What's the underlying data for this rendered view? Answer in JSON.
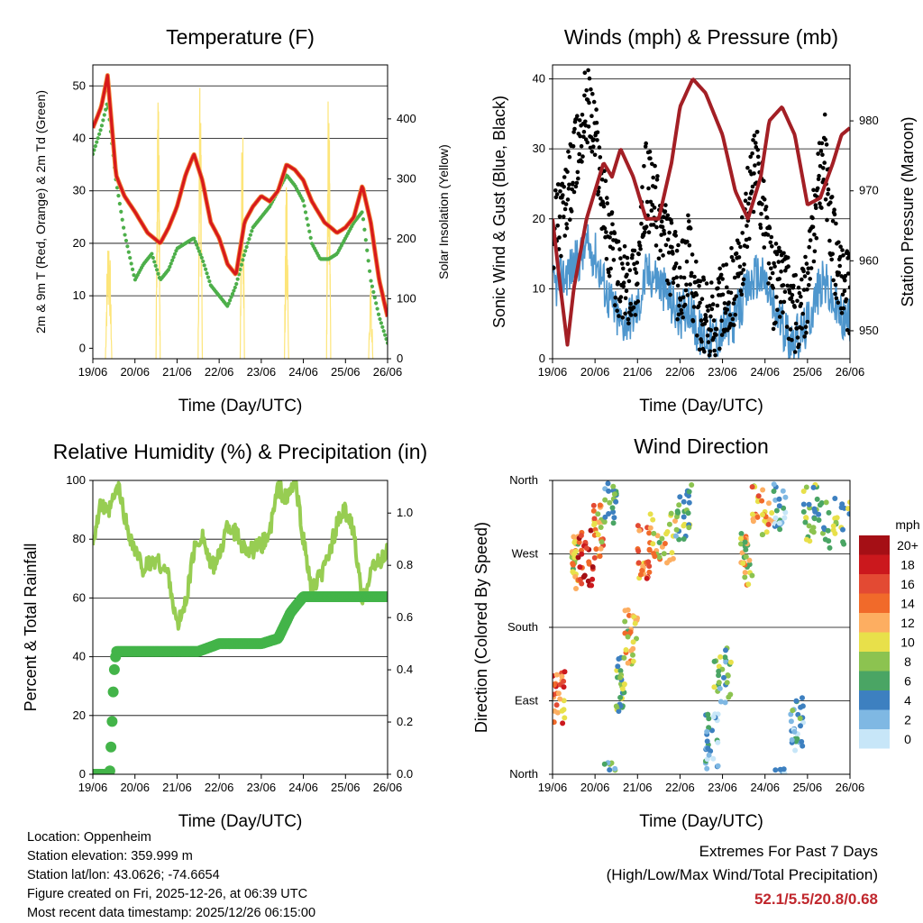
{
  "chart_data": [
    {
      "type": "line",
      "title": "Temperature (F)",
      "xlabel": "Time (Day/UTC)",
      "ylabel": "2m & 9m T (Red, Orange) & 2m Td (Green)",
      "y2label": "Solar Insolation (Yellow)",
      "x_ticks": [
        "19/06",
        "20/06",
        "21/06",
        "22/06",
        "23/06",
        "24/06",
        "25/06",
        "26/06"
      ],
      "xlim": [
        0,
        7
      ],
      "ylim": [
        -2,
        54
      ],
      "y_ticks": [
        0,
        10,
        20,
        30,
        40,
        50
      ],
      "y2lim": [
        0,
        490
      ],
      "y2_ticks": [
        0,
        100,
        200,
        300,
        400
      ],
      "series": [
        {
          "name": "2m T",
          "color": "#d7191c",
          "x": [
            0.0,
            0.2,
            0.35,
            0.55,
            0.75,
            1.0,
            1.3,
            1.6,
            1.8,
            2.0,
            2.2,
            2.4,
            2.6,
            2.8,
            3.0,
            3.2,
            3.4,
            3.6,
            3.8,
            4.0,
            4.2,
            4.4,
            4.6,
            4.8,
            5.0,
            5.2,
            5.5,
            5.8,
            6.0,
            6.2,
            6.4,
            6.6,
            6.8,
            7.0
          ],
          "values": [
            42,
            46,
            52,
            33,
            29,
            26,
            22,
            20,
            23,
            27,
            33,
            37,
            32,
            24,
            21,
            16,
            14,
            24,
            27,
            29,
            28,
            30,
            35,
            34,
            32,
            28,
            24,
            22,
            23,
            25,
            31,
            24,
            13,
            6
          ]
        },
        {
          "name": "2m Td",
          "color": "#4daf4a",
          "x": [
            0.0,
            0.2,
            0.35,
            0.55,
            0.75,
            1.0,
            1.2,
            1.4,
            1.6,
            1.8,
            2.0,
            2.2,
            2.4,
            2.6,
            2.8,
            3.0,
            3.2,
            3.4,
            3.6,
            3.8,
            4.0,
            4.2,
            4.4,
            4.6,
            4.8,
            5.0,
            5.2,
            5.4,
            5.6,
            5.8,
            6.0,
            6.2,
            6.4,
            6.6,
            6.8,
            7.0
          ],
          "values": [
            37,
            42,
            47,
            32,
            22,
            13,
            16,
            18,
            13,
            15,
            19,
            20,
            21,
            17,
            12,
            10,
            8,
            12,
            18,
            23,
            25,
            27,
            30,
            33,
            31,
            28,
            20,
            17,
            17,
            18,
            21,
            24,
            26,
            13,
            6,
            1
          ]
        },
        {
          "name": "Solar Insolation",
          "color": "#fde57a",
          "axis": "y2",
          "x": [
            0.3,
            0.45,
            1.5,
            1.6,
            2.5,
            2.6,
            3.5,
            3.6,
            4.55,
            4.65,
            5.55,
            5.65,
            6.55,
            6.65
          ],
          "values": [
            80,
            230,
            190,
            460,
            160,
            490,
            130,
            410,
            120,
            300,
            100,
            490,
            50,
            120
          ]
        }
      ]
    },
    {
      "type": "scatter",
      "title": "Winds (mph) & Pressure (mb)",
      "xlabel": "Time (Day/UTC)",
      "ylabel": "Sonic Wind & Gust (Blue, Black)",
      "y2label": "Station Pressure (Maroon)",
      "x_ticks": [
        "19/06",
        "20/06",
        "21/06",
        "22/06",
        "23/06",
        "24/06",
        "25/06",
        "26/06"
      ],
      "xlim": [
        0,
        7
      ],
      "ylim": [
        0,
        42
      ],
      "y_ticks": [
        0,
        10,
        20,
        30,
        40
      ],
      "y2lim": [
        946,
        988
      ],
      "y2_ticks": [
        950,
        960,
        970,
        980
      ],
      "series": [
        {
          "name": "Gust",
          "color": "#000000",
          "x": [
            0.0,
            0.3,
            0.6,
            0.8,
            1.0,
            1.3,
            1.6,
            1.8,
            2.0,
            2.2,
            2.4,
            2.6,
            2.8,
            3.0,
            3.2,
            3.4,
            3.6,
            3.8,
            4.0,
            4.2,
            4.4,
            4.6,
            4.8,
            5.0,
            5.2,
            5.4,
            5.6,
            5.8,
            6.0,
            6.2,
            6.4,
            6.6,
            6.8,
            7.0
          ],
          "values": [
            18,
            22,
            30,
            37,
            32,
            18,
            10,
            11,
            12,
            25,
            22,
            18,
            14,
            10,
            15,
            8,
            5,
            6,
            8,
            10,
            12,
            22,
            28,
            20,
            10,
            12,
            8,
            5,
            10,
            22,
            30,
            16,
            12,
            9
          ]
        },
        {
          "name": "Wind",
          "color": "#4e96cd",
          "x": [
            0.0,
            0.3,
            0.6,
            0.8,
            1.0,
            1.3,
            1.6,
            1.8,
            2.0,
            2.2,
            2.4,
            2.6,
            2.8,
            3.0,
            3.2,
            3.4,
            3.6,
            3.8,
            4.0,
            4.2,
            4.4,
            4.6,
            4.8,
            5.0,
            5.2,
            5.4,
            5.6,
            5.8,
            6.0,
            6.2,
            6.4,
            6.6,
            6.8,
            7.0
          ],
          "values": [
            10,
            12,
            14,
            16,
            15,
            9,
            5,
            6,
            7,
            12,
            12,
            10,
            8,
            6,
            8,
            4,
            3,
            3,
            4,
            5,
            7,
            10,
            12,
            11,
            7,
            5,
            3,
            3,
            5,
            9,
            11,
            8,
            6,
            5
          ]
        },
        {
          "name": "Station Pressure",
          "color": "#a31f25",
          "axis": "y2",
          "x": [
            0.0,
            0.15,
            0.35,
            0.5,
            0.8,
            1.2,
            1.4,
            1.6,
            1.9,
            2.2,
            2.5,
            2.8,
            3.0,
            3.3,
            3.6,
            4.0,
            4.3,
            4.6,
            4.9,
            5.1,
            5.4,
            5.7,
            6.0,
            6.3,
            6.6,
            6.8,
            7.0
          ],
          "values": [
            966,
            958,
            948,
            956,
            966,
            974,
            972,
            976,
            972,
            966,
            966,
            974,
            982,
            986,
            984,
            978,
            970,
            966,
            972,
            980,
            982,
            978,
            968,
            969,
            974,
            978,
            979
          ]
        }
      ]
    },
    {
      "type": "line",
      "title": "Relative Humidity (%) & Precipitation (in)",
      "xlabel": "Time (Day/UTC)",
      "ylabel": "Percent & Total Rainfall",
      "x_ticks": [
        "19/06",
        "20/06",
        "21/06",
        "22/06",
        "23/06",
        "24/06",
        "25/06",
        "26/06"
      ],
      "xlim": [
        0,
        7
      ],
      "ylim": [
        0,
        100
      ],
      "y_ticks": [
        0,
        20,
        40,
        60,
        80,
        100
      ],
      "y2lim": [
        0,
        1.125
      ],
      "y2_ticks": [
        "0.0",
        "0.2",
        "0.4",
        "0.6",
        "0.8",
        "1.0"
      ],
      "series": [
        {
          "name": "Relative Humidity",
          "color": "#97cd52",
          "x": [
            0.0,
            0.2,
            0.35,
            0.6,
            0.8,
            1.0,
            1.2,
            1.5,
            1.8,
            2.0,
            2.2,
            2.4,
            2.6,
            2.8,
            3.0,
            3.2,
            3.4,
            3.6,
            3.8,
            4.0,
            4.2,
            4.4,
            4.6,
            4.8,
            5.0,
            5.2,
            5.5,
            5.8,
            6.0,
            6.2,
            6.4,
            6.6,
            6.8,
            7.0
          ],
          "values": [
            80,
            92,
            88,
            98,
            85,
            76,
            70,
            73,
            68,
            50,
            58,
            76,
            82,
            70,
            74,
            85,
            82,
            77,
            76,
            78,
            82,
            98,
            93,
            100,
            80,
            62,
            70,
            85,
            90,
            82,
            58,
            70,
            72,
            76
          ]
        },
        {
          "name": "Total Rainfall",
          "color": "#43b449",
          "axis": "y2",
          "x": [
            0.0,
            0.3,
            0.4,
            0.45,
            0.5,
            0.55,
            1.0,
            2.5,
            3.0,
            3.3,
            4.0,
            4.4,
            4.7,
            5.0,
            5.5,
            6.0,
            7.0
          ],
          "values": [
            0.0,
            0.0,
            0.0,
            0.17,
            0.38,
            0.47,
            0.47,
            0.47,
            0.5,
            0.5,
            0.5,
            0.52,
            0.62,
            0.68,
            0.68,
            0.68,
            0.68
          ]
        }
      ]
    },
    {
      "type": "scatter",
      "title": "Wind Direction",
      "xlabel": "Time (Day/UTC)",
      "ylabel": "Direction (Colored By Speed)",
      "x_ticks": [
        "19/06",
        "20/06",
        "21/06",
        "22/06",
        "23/06",
        "24/06",
        "25/06",
        "26/06"
      ],
      "xlim": [
        0,
        7
      ],
      "ylim": [
        0,
        360
      ],
      "y_tick_labels": [
        "North",
        "East",
        "South",
        "West",
        "North"
      ],
      "legend_title": "mph",
      "legend_labels": [
        "20+",
        "18",
        "16",
        "14",
        "12",
        "10",
        "8",
        "6",
        "4",
        "2",
        "0"
      ],
      "legend_colors": [
        "#a50f15",
        "#cb181d",
        "#e34a33",
        "#f16a2a",
        "#fdae61",
        "#e8e04a",
        "#8cc350",
        "#4aa564",
        "#3d80c0",
        "#7fb8e3",
        "#c7e6f8"
      ],
      "clusters": [
        {
          "x0": 0.0,
          "x1": 0.3,
          "dir": 95,
          "speed": 14
        },
        {
          "x0": 0.45,
          "x1": 0.6,
          "dir": 260,
          "speed": 10
        },
        {
          "x0": 0.6,
          "x1": 0.95,
          "dir": 265,
          "speed": 18
        },
        {
          "x0": 0.95,
          "x1": 1.2,
          "dir": 300,
          "speed": 12
        },
        {
          "x0": 1.2,
          "x1": 1.5,
          "dir": 340,
          "speed": 5
        },
        {
          "x0": 1.5,
          "x1": 1.7,
          "dir": 110,
          "speed": 7
        },
        {
          "x0": 1.7,
          "x1": 2.0,
          "dir": 170,
          "speed": 10
        },
        {
          "x0": 2.0,
          "x1": 2.3,
          "dir": 270,
          "speed": 14
        },
        {
          "x0": 2.3,
          "x1": 2.9,
          "dir": 290,
          "speed": 10
        },
        {
          "x0": 2.9,
          "x1": 3.3,
          "dir": 320,
          "speed": 6
        },
        {
          "x0": 3.6,
          "x1": 3.9,
          "dir": 40,
          "speed": 2
        },
        {
          "x0": 3.8,
          "x1": 4.2,
          "dir": 120,
          "speed": 6
        },
        {
          "x0": 4.4,
          "x1": 4.7,
          "dir": 260,
          "speed": 10
        },
        {
          "x0": 4.7,
          "x1": 5.2,
          "dir": 320,
          "speed": 12
        },
        {
          "x0": 5.2,
          "x1": 5.5,
          "dir": 335,
          "speed": 3
        },
        {
          "x0": 5.6,
          "x1": 5.9,
          "dir": 60,
          "speed": 4
        },
        {
          "x0": 5.9,
          "x1": 6.3,
          "dir": 320,
          "speed": 7
        },
        {
          "x0": 6.3,
          "x1": 7.0,
          "dir": 310,
          "speed": 7
        }
      ]
    }
  ],
  "info": {
    "location": "Location: Oppenheim",
    "elevation": "Station elevation: 359.999 m",
    "latlon": "Station lat/lon: 43.0626; -74.6654",
    "created": "Figure created on Fri, 2025-12-26, at 06:39 UTC",
    "recent": "Most recent data timestamp: 2025/12/26 06:15:00"
  },
  "extremes": {
    "title": "Extremes For Past 7 Days",
    "subtitle": "(High/Low/Max Wind/Total Precipitation)",
    "values": "52.1/5.5/20.8/0.68"
  }
}
